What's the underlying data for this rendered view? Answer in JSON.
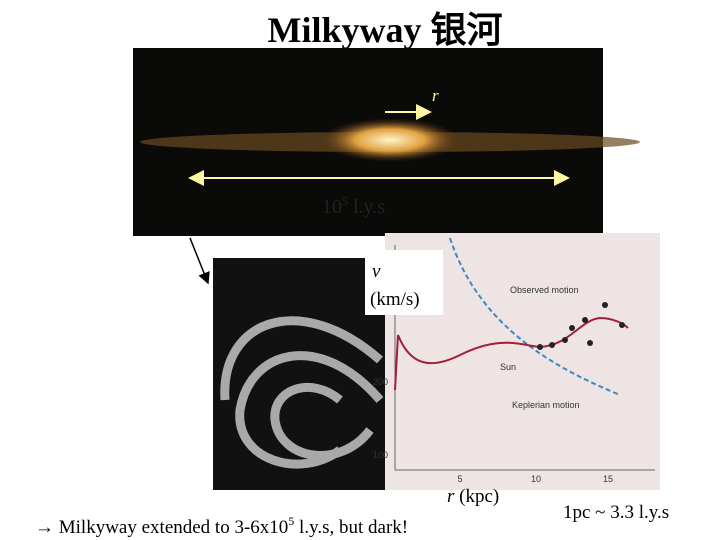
{
  "title": "Milkyway 银河",
  "edge_on_image": {
    "radius_label": "r",
    "size_label": {
      "base": "10",
      "exponent": "5",
      "unit": " l.y.s"
    }
  },
  "rotation_curve": {
    "y_label": {
      "symbol": "v",
      "unit": "(km/s)"
    },
    "x_label": {
      "symbol": "r",
      "unit": " (kpc)"
    },
    "x_ticks": [
      "5",
      "10",
      "15"
    ],
    "y_ticks": [
      "200",
      "100"
    ],
    "annotations": {
      "observed": "Observed motion",
      "sun": "Sun",
      "keplerian": "Keplerian motion"
    }
  },
  "footer": {
    "note": {
      "before": "→ Milkyway extended to 3-6x10",
      "exponent": "5",
      "after": " l.y.s, but dark!"
    },
    "conversion": "1pc ~ 3.3 l.y.s"
  }
}
